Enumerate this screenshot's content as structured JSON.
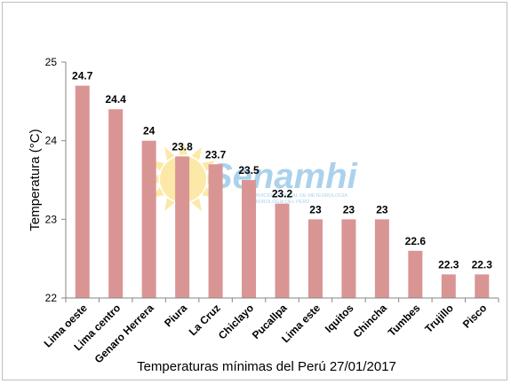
{
  "chart_data": {
    "type": "bar",
    "categories": [
      "Lima oeste",
      "Lima centro",
      "Genaro Herrera",
      "Piura",
      "La Cruz",
      "Chiclayo",
      "Pucallpa",
      "Lima este",
      "Iquitos",
      "Chincha",
      "Tumbes",
      "Trujillo",
      "Pisco"
    ],
    "values": [
      24.7,
      24.4,
      24,
      23.8,
      23.7,
      23.5,
      23.2,
      23,
      23,
      23,
      22.6,
      22.3,
      22.3
    ],
    "value_labels": [
      "24.7",
      "24.4",
      "24",
      "23.8",
      "23.7",
      "23.5",
      "23.2",
      "23",
      "23",
      "23",
      "22.6",
      "22.3",
      "22.3"
    ],
    "title": "",
    "xlabel": "Temperaturas mínimas del Perú 27/01/2017",
    "ylabel": "Temperatura (°C)",
    "ylim": [
      22,
      25
    ],
    "yticks": [
      "22",
      "23",
      "24",
      "25"
    ],
    "grid": false,
    "legend": "none",
    "bar_color": "#d99594"
  },
  "watermark": {
    "logo_text": "Senamhi",
    "logo_color": "#8fc3e6",
    "sun_color": "#fbe28a",
    "subtitle_line1": "SERVICIO NACIONAL DE METEOROLOGÍA",
    "subtitle_line2": "E HIDROLOGÍA DEL PERÚ"
  }
}
